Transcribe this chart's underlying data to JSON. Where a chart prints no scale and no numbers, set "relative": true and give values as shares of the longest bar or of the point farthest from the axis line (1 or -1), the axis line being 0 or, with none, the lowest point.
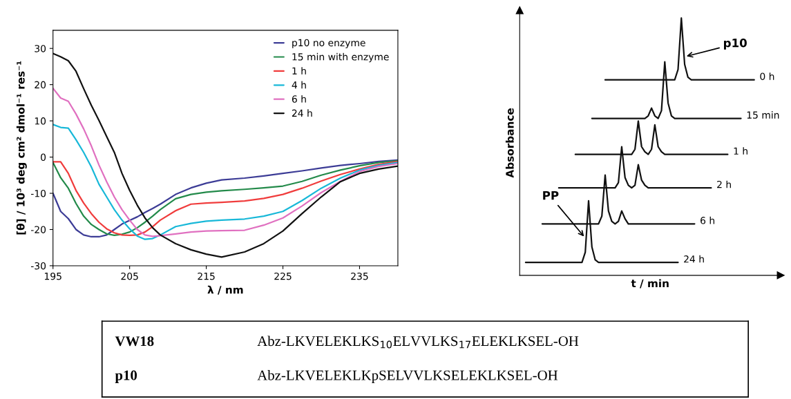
{
  "chart_data": [
    {
      "type": "line",
      "xlabel": "λ / nm",
      "ylabel": "[θ] / 10³ deg cm² dmol⁻¹ res⁻¹",
      "xlim": [
        195,
        240
      ],
      "xticks": [
        195,
        205,
        215,
        225,
        235
      ],
      "ylim": [
        -30,
        35
      ],
      "yticks": [
        -30,
        -20,
        -10,
        0,
        10,
        20,
        30
      ],
      "legend": "top right",
      "x": [
        195,
        196,
        197,
        198,
        199,
        200,
        201,
        202,
        203,
        204,
        205,
        206,
        207,
        208,
        209,
        211,
        213,
        215,
        217,
        220,
        222.5,
        225,
        227.5,
        230,
        232.5,
        235,
        237.5,
        240
      ],
      "series": [
        {
          "name": "p10 no enzyme",
          "color": "#3c3c96",
          "values": [
            -10,
            -15,
            -17,
            -20,
            -21.5,
            -22,
            -22,
            -21.5,
            -20,
            -18.5,
            -17.5,
            -16.5,
            -15.3,
            -14.2,
            -13,
            -10.3,
            -8.5,
            -7.2,
            -6.3,
            -5.8,
            -5.2,
            -4.5,
            -3.8,
            -3,
            -2.3,
            -1.8,
            -1.2,
            -0.8
          ]
        },
        {
          "name": "15 min with enzyme",
          "color": "#238a4a",
          "values": [
            -1.5,
            -5.7,
            -8.6,
            -12.8,
            -16.3,
            -18.6,
            -20,
            -21.2,
            -21.6,
            -21.3,
            -20.7,
            -19.5,
            -18,
            -16.3,
            -14.5,
            -11.5,
            -10.3,
            -9.7,
            -9.3,
            -8.9,
            -8.5,
            -8,
            -6.7,
            -5,
            -3.6,
            -2.4,
            -1.5,
            -1
          ]
        },
        {
          "name": "1 h",
          "color": "#f03c3c",
          "values": [
            -1.3,
            -1.3,
            -4.5,
            -9.2,
            -12.7,
            -15.6,
            -18,
            -19.8,
            -20.9,
            -21.5,
            -21.6,
            -21.5,
            -20.7,
            -19.2,
            -17.4,
            -14.8,
            -13,
            -12.7,
            -12.5,
            -12.1,
            -11.4,
            -10.3,
            -8.6,
            -6.6,
            -4.8,
            -3.3,
            -2,
            -1.2
          ]
        },
        {
          "name": "4 h",
          "color": "#18b8d8",
          "values": [
            9,
            8.2,
            8,
            4.8,
            1.3,
            -2.7,
            -7.5,
            -11,
            -14.5,
            -17.4,
            -19.8,
            -21.8,
            -22.7,
            -22.5,
            -21.5,
            -19.2,
            -18.3,
            -17.7,
            -17.4,
            -17.1,
            -16.3,
            -15,
            -12,
            -8.6,
            -5.8,
            -3.6,
            -2.3,
            -1.5
          ]
        },
        {
          "name": "6 h",
          "color": "#e070c0",
          "values": [
            19,
            16.3,
            15.4,
            11.9,
            7.8,
            3.1,
            -2.2,
            -6.8,
            -11,
            -14.5,
            -17.4,
            -20,
            -21.5,
            -21.9,
            -21.7,
            -21.2,
            -20.7,
            -20.4,
            -20.3,
            -20.2,
            -18.8,
            -16.8,
            -13.5,
            -9.8,
            -6.7,
            -4,
            -2.6,
            -1.8
          ]
        },
        {
          "name": "24 h",
          "color": "#111111",
          "values": [
            28.6,
            27.7,
            26.6,
            23.7,
            18.9,
            14.3,
            10.1,
            5.7,
            1.3,
            -4.5,
            -9.2,
            -13.3,
            -16.8,
            -19.5,
            -21.5,
            -23.9,
            -25.6,
            -26.8,
            -27.6,
            -26.2,
            -23.9,
            -20.4,
            -15.6,
            -11,
            -6.8,
            -4.5,
            -3.3,
            -2.5
          ]
        }
      ]
    },
    {
      "type": "line",
      "relative": true,
      "tick_labels": false,
      "xlabel": "t / min",
      "ylabel": "Absorbance",
      "annotations": [
        "p10",
        "PP"
      ],
      "categories": [
        null,
        null,
        null,
        null,
        null,
        null,
        null,
        null,
        null,
        null,
        null,
        null,
        null,
        null,
        null,
        null,
        null,
        null,
        null,
        null,
        null,
        null,
        null,
        null,
        null,
        null,
        null,
        null,
        null,
        null,
        null,
        null,
        null,
        null,
        null,
        null,
        null,
        null,
        null,
        null,
        null,
        null,
        null,
        null,
        null,
        null,
        null,
        null,
        null,
        null,
        null,
        null,
        null,
        null,
        null,
        null,
        null,
        null,
        null,
        null,
        null,
        null,
        null,
        null,
        null,
        null,
        null,
        null,
        null,
        null,
        null,
        null
      ],
      "series": [
        {
          "name": "0 h",
          "color": "#111111",
          "values": [
            null,
            null,
            null,
            null,
            null,
            null,
            null,
            null,
            null,
            null,
            null,
            null,
            null,
            null,
            null,
            null,
            null,
            null,
            null,
            null,
            null,
            null,
            null,
            null,
            null,
            0.76,
            0.76,
            0.76,
            0.76,
            0.76,
            0.76,
            0.76,
            0.76,
            0.76,
            0.76,
            0.76,
            0.76,
            0.76,
            0.76,
            0.76,
            0.76,
            0.76,
            0.76,
            0.76,
            0.76,
            0.76,
            0.76,
            0.8,
            1.0,
            0.82,
            0.77,
            0.76,
            0.76,
            0.76,
            0.76,
            0.76,
            0.76,
            0.76,
            0.76,
            0.76,
            0.76,
            0.76,
            0.76,
            0.76,
            0.76,
            0.76,
            0.76,
            0.76,
            0.76,
            0.76,
            0.76,
            null
          ]
        },
        {
          "name": "15 min",
          "color": "#111111",
          "values": [
            null,
            null,
            null,
            null,
            null,
            null,
            null,
            null,
            null,
            null,
            null,
            null,
            null,
            null,
            null,
            null,
            null,
            null,
            null,
            null,
            null,
            0.61,
            0.61,
            0.61,
            0.61,
            0.61,
            0.61,
            0.61,
            0.61,
            0.61,
            0.61,
            0.61,
            0.61,
            0.61,
            0.61,
            0.61,
            0.61,
            0.61,
            0.62,
            0.65,
            0.62,
            0.61,
            0.64,
            0.83,
            0.67,
            0.62,
            0.61,
            0.61,
            0.61,
            0.61,
            0.61,
            0.61,
            0.61,
            0.61,
            0.61,
            0.61,
            0.61,
            0.61,
            0.61,
            0.61,
            0.61,
            0.61,
            0.61,
            0.61,
            0.61,
            0.61,
            0.61,
            null,
            null,
            null,
            null,
            null
          ]
        },
        {
          "name": "1 h",
          "color": "#111111",
          "values": [
            null,
            null,
            null,
            null,
            null,
            null,
            null,
            null,
            null,
            null,
            null,
            null,
            null,
            null,
            null,
            null,
            0.47,
            0.47,
            0.47,
            0.47,
            0.47,
            0.47,
            0.47,
            0.47,
            0.47,
            0.47,
            0.47,
            0.47,
            0.47,
            0.47,
            0.47,
            0.47,
            0.47,
            0.47,
            0.49,
            0.6,
            0.5,
            0.48,
            0.47,
            0.49,
            0.585,
            0.5,
            0.48,
            0.47,
            0.47,
            0.47,
            0.47,
            0.47,
            0.47,
            0.47,
            0.47,
            0.47,
            0.47,
            0.47,
            0.47,
            0.47,
            0.47,
            0.47,
            0.47,
            0.47,
            0.47,
            0.47,
            0.47,
            null,
            null,
            null,
            null,
            null,
            null,
            null,
            null,
            null
          ]
        },
        {
          "name": "2 h",
          "color": "#111111",
          "values": [
            null,
            null,
            null,
            null,
            null,
            null,
            null,
            null,
            null,
            null,
            null,
            0.34,
            0.34,
            0.34,
            0.34,
            0.34,
            0.34,
            0.34,
            0.34,
            0.34,
            0.34,
            0.34,
            0.34,
            0.34,
            0.34,
            0.34,
            0.34,
            0.34,
            0.34,
            0.36,
            0.5,
            0.38,
            0.35,
            0.34,
            0.35,
            0.43,
            0.37,
            0.35,
            0.34,
            0.34,
            0.34,
            0.34,
            0.34,
            0.34,
            0.34,
            0.34,
            0.34,
            0.34,
            0.34,
            0.34,
            0.34,
            0.34,
            0.34,
            0.34,
            0.34,
            0.34,
            0.34,
            0.34,
            null,
            null,
            null,
            null,
            null,
            null,
            null,
            null,
            null,
            null,
            null,
            null,
            null,
            null
          ]
        },
        {
          "name": "6 h",
          "color": "#111111",
          "values": [
            null,
            null,
            null,
            null,
            null,
            null,
            0.2,
            0.2,
            0.2,
            0.2,
            0.2,
            0.2,
            0.2,
            0.2,
            0.2,
            0.2,
            0.2,
            0.2,
            0.2,
            0.2,
            0.2,
            0.2,
            0.2,
            0.2,
            0.23,
            0.39,
            0.25,
            0.21,
            0.2,
            0.21,
            0.25,
            0.22,
            0.2,
            0.2,
            0.2,
            0.2,
            0.2,
            0.2,
            0.2,
            0.2,
            0.2,
            0.2,
            0.2,
            0.2,
            0.2,
            0.2,
            0.2,
            0.2,
            0.2,
            0.2,
            0.2,
            0.2,
            0.2,
            null,
            null,
            null,
            null,
            null,
            null,
            null,
            null,
            null,
            null,
            null,
            null,
            null,
            null,
            null,
            null,
            null,
            null,
            null
          ]
        },
        {
          "name": "24 h",
          "color": "#111111",
          "values": [
            null,
            0.05,
            0.05,
            0.05,
            0.05,
            0.05,
            0.05,
            0.05,
            0.05,
            0.05,
            0.05,
            0.05,
            0.05,
            0.05,
            0.05,
            0.05,
            0.05,
            0.05,
            0.05,
            0.09,
            0.29,
            0.11,
            0.06,
            0.05,
            0.05,
            0.05,
            0.05,
            0.05,
            0.05,
            0.05,
            0.05,
            0.05,
            0.05,
            0.05,
            0.05,
            0.05,
            0.05,
            0.05,
            0.05,
            0.05,
            0.05,
            0.05,
            0.05,
            0.05,
            0.05,
            0.05,
            0.05,
            0.05,
            null,
            null,
            null,
            null,
            null,
            null,
            null,
            null,
            null,
            null,
            null,
            null,
            null,
            null,
            null,
            null,
            null,
            null,
            null,
            null,
            null,
            null,
            null,
            null
          ]
        }
      ]
    },
    {
      "type": "other",
      "annotations": [
        "VW18",
        "Abz-LKVELEKLKS$_{10}$ELVVLKS$_{17}$ELEKLKSEL-OH",
        "p10",
        "Abz-LKVELEKLKpSELVVLKSELEKLKSEL-OH"
      ]
    }
  ]
}
